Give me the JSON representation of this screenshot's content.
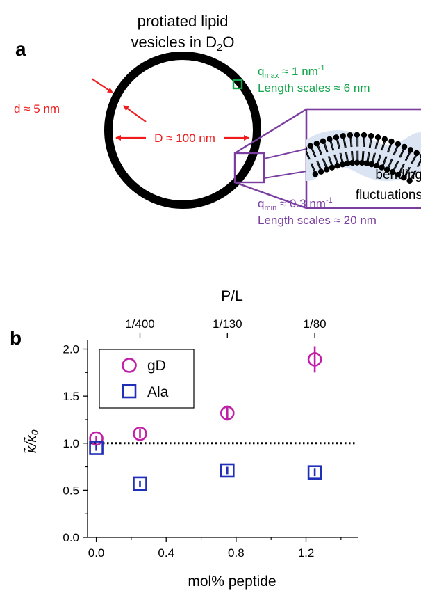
{
  "panel_a": {
    "label": "a",
    "title_line1": "protiated lipid",
    "title_line2_main": "vesicles in D",
    "title_line2_sub": "2",
    "title_line2_end": "O",
    "d_label": "d ≈ 5 nm",
    "D_label": "D ≈ 100 nm",
    "qmax_q": "q",
    "qmax_sub": "max",
    "qmax_rest": " ≈ 1 nm",
    "qmax_sup": "-1",
    "qmax_length": "Length scales ≈ 6 nm",
    "qmin_q": "q",
    "qmin_sub": "min",
    "qmin_rest": " ≈ 0.3 nm",
    "qmin_sup": "-1",
    "qmin_length": "Length scales ≈ 20 nm",
    "inset_line1": "bending",
    "inset_line2": "fluctuations",
    "colors": {
      "red": "#ee1c1c",
      "green": "#12a64a",
      "purple": "#7a3ea0",
      "black": "#000000",
      "membrane_bg": "#dbe4f3"
    }
  },
  "panel_b": {
    "label": "b",
    "colors": {
      "gd": "#c01fa8",
      "ala": "#1f2fb8"
    }
  },
  "chart_data": {
    "type": "scatter",
    "xlabel": "mol% peptide",
    "ylabel": "κ̃/κ̃₀",
    "top_xlabel": "P/L",
    "xlim": [
      -0.05,
      1.5
    ],
    "ylim": [
      0.0,
      2.1
    ],
    "x_ticks": [
      0.0,
      0.4,
      0.8,
      1.2
    ],
    "x_tick_labels": [
      "0.0",
      "0.4",
      "0.8",
      "1.2"
    ],
    "y_ticks": [
      0.0,
      0.5,
      1.0,
      1.5,
      2.0
    ],
    "y_tick_labels": [
      "0.0",
      "0.5",
      "1.0",
      "1.5",
      "2.0"
    ],
    "top_ticks": [
      0.25,
      0.75,
      1.25
    ],
    "top_tick_labels": [
      "1/400",
      "1/130",
      "1/80"
    ],
    "reference_line": 1.0,
    "legend_position": "top-left",
    "series": [
      {
        "name": "gD",
        "marker": "circle",
        "x": [
          0.0,
          0.25,
          0.75,
          1.25
        ],
        "y": [
          1.05,
          1.1,
          1.32,
          1.89
        ],
        "err": [
          0.03,
          0.05,
          0.08,
          0.14
        ]
      },
      {
        "name": "Ala",
        "marker": "square",
        "x": [
          0.0,
          0.25,
          0.75,
          1.25
        ],
        "y": [
          0.95,
          0.57,
          0.71,
          0.69
        ],
        "err": [
          0.03,
          0.03,
          0.04,
          0.04
        ]
      }
    ]
  }
}
